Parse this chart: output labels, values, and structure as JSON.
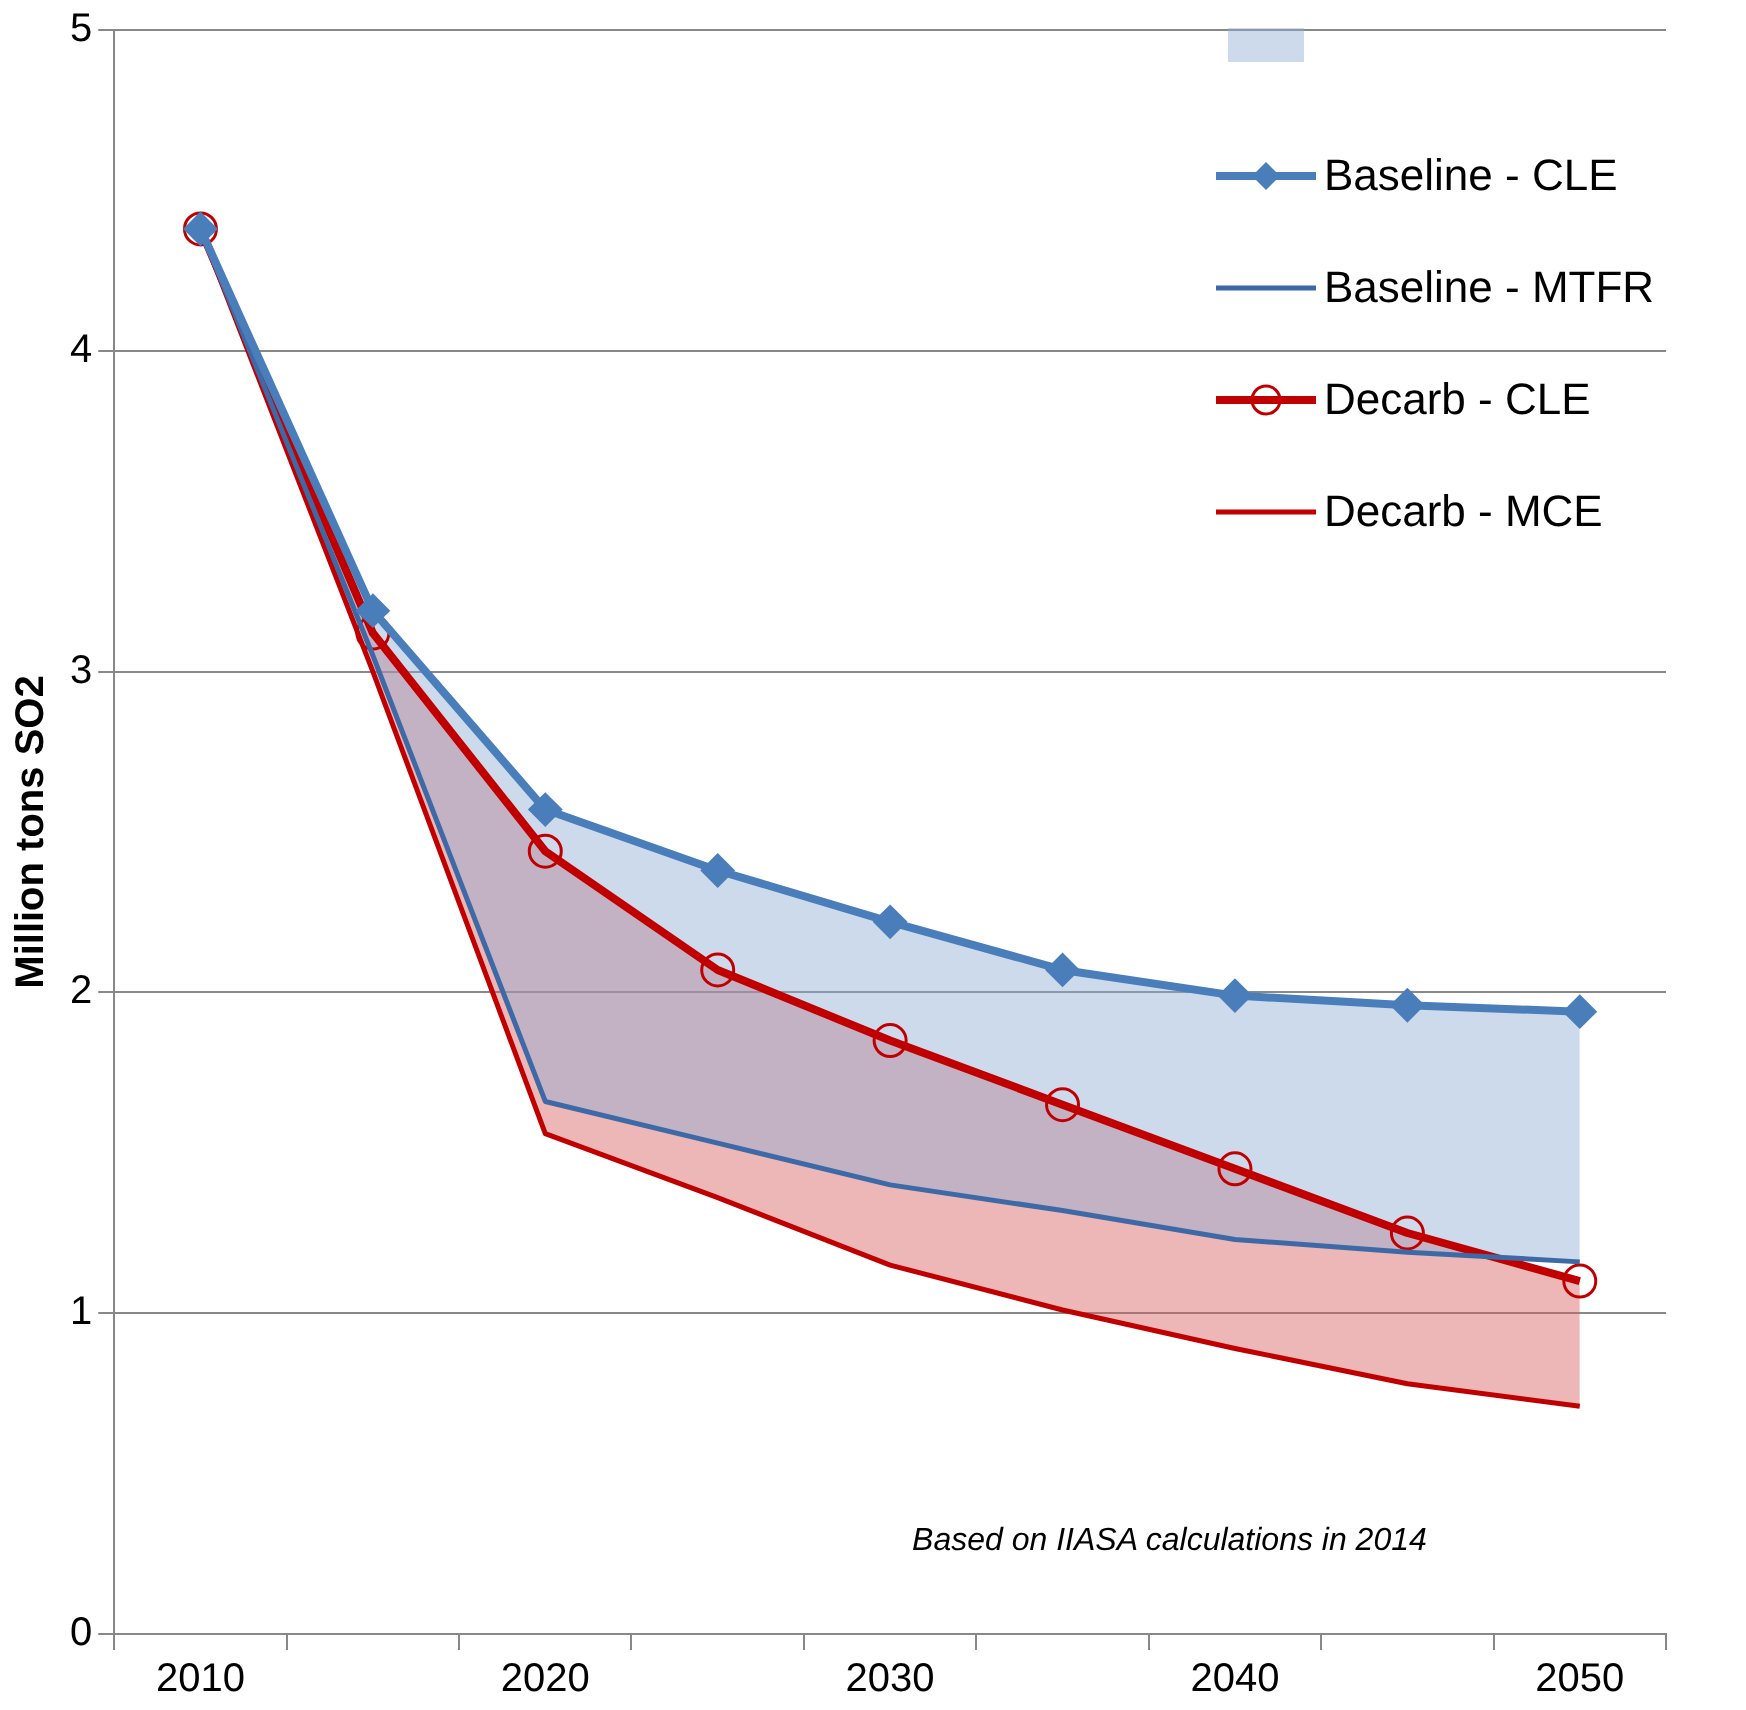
{
  "chart_data": {
    "type": "line",
    "ylabel": "Million tons SO2",
    "categories": [
      "2010",
      null,
      "2020",
      null,
      "2030",
      null,
      "2040",
      null,
      "2050"
    ],
    "series": [
      {
        "name": "Baseline - CLE",
        "color": "#4a7ebb",
        "marker": "diamond",
        "values": [
          4.38,
          3.19,
          2.57,
          2.38,
          2.22,
          2.07,
          1.99,
          1.96,
          1.94
        ],
        "lower": [
          4.38,
          3.05,
          1.66,
          1.53,
          1.4,
          1.32,
          1.23,
          1.19,
          1.16
        ],
        "upper": [
          4.38,
          3.19,
          2.57,
          2.38,
          2.22,
          2.07,
          1.99,
          1.96,
          1.94
        ]
      },
      {
        "name": "Baseline - MTFR",
        "color": "#3d6aa6",
        "marker": "none",
        "values": [
          4.38,
          3.05,
          1.66,
          1.53,
          1.4,
          1.32,
          1.23,
          1.19,
          1.16
        ]
      },
      {
        "name": "Decarb - CLE",
        "color": "#c00000",
        "marker": "circle",
        "values": [
          4.38,
          3.12,
          2.44,
          2.07,
          1.85,
          1.65,
          1.45,
          1.25,
          1.1
        ],
        "lower": [
          4.38,
          3.0,
          1.56,
          1.36,
          1.15,
          1.01,
          0.89,
          0.78,
          0.71
        ],
        "upper": [
          4.38,
          3.12,
          2.44,
          2.07,
          1.85,
          1.65,
          1.45,
          1.25,
          1.1
        ]
      },
      {
        "name": "Decarb - MCE",
        "color": "#c00000",
        "marker": "none",
        "values": [
          4.38,
          3.0,
          1.56,
          1.36,
          1.15,
          1.01,
          0.89,
          0.78,
          0.71
        ]
      }
    ],
    "ylim": [
      0,
      5
    ],
    "yticks": [
      0,
      1,
      2,
      3,
      4,
      5
    ],
    "grid": "y",
    "legend": "top right",
    "annotations": [
      "Based on IIASA calculations in 2014"
    ]
  }
}
